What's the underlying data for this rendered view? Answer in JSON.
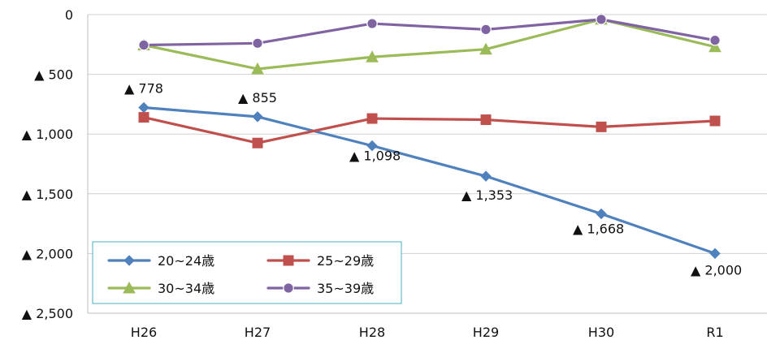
{
  "chart_data": {
    "type": "line",
    "categories": [
      "H26",
      "H27",
      "H28",
      "H29",
      "H30",
      "R1"
    ],
    "yticks": [
      0,
      500,
      1000,
      1500,
      2000,
      2500
    ],
    "ytick_labels": [
      "0",
      "▲ 500",
      "▲ 1,000",
      "▲ 1,500",
      "▲ 2,000",
      "▲ 2,500"
    ],
    "ylim": [
      0,
      2500
    ],
    "y_inverted": true,
    "grid": true,
    "legend_position": "bottom-left",
    "series": [
      {
        "name": "20~24歳",
        "color": "#4F81BD",
        "marker": "diamond",
        "values": [
          778,
          855,
          1098,
          1353,
          1668,
          2000
        ],
        "labels": [
          "▲ 778",
          "▲ 855",
          "▲ 1,098",
          "▲ 1,353",
          "▲ 1,668",
          "▲ 2,000"
        ]
      },
      {
        "name": "25~29歳",
        "color": "#C0504D",
        "marker": "square",
        "values": [
          860,
          1075,
          870,
          880,
          940,
          890
        ]
      },
      {
        "name": "30~34歳",
        "color": "#9BBB59",
        "marker": "triangle",
        "values": [
          255,
          455,
          355,
          290,
          40,
          270
        ]
      },
      {
        "name": "35~39歳",
        "color": "#8064A2",
        "marker": "circle",
        "values": [
          255,
          240,
          75,
          125,
          40,
          215
        ]
      }
    ]
  }
}
